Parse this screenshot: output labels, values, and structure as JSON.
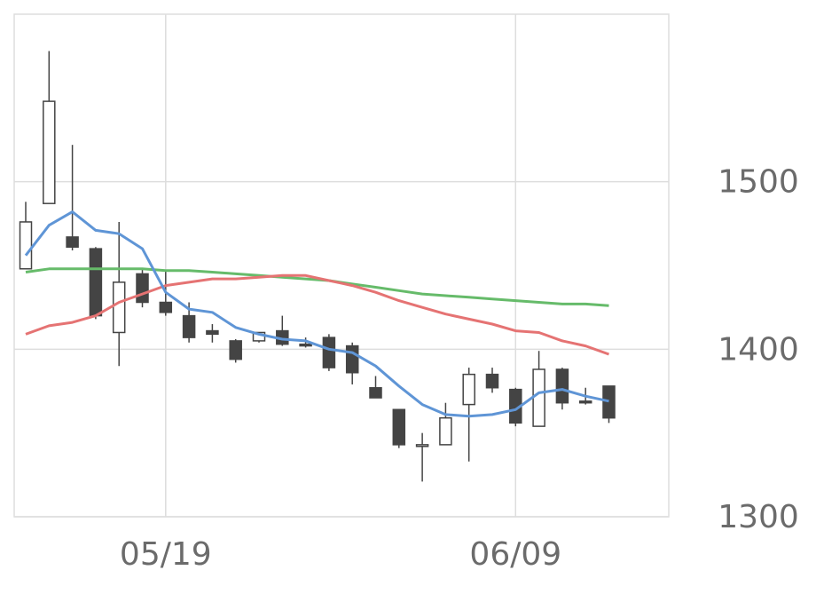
{
  "chart_data": {
    "type": "candlestick",
    "title": "",
    "xlabel": "",
    "ylabel": "",
    "ylim": [
      1300,
      1600
    ],
    "y_ticks": [
      1300,
      1400,
      1500
    ],
    "x_tick_labels": [
      "05/19",
      "06/09"
    ],
    "grid": true,
    "y_axis_side": "right",
    "colors": {
      "up_fill": "#ffffff",
      "down_fill": "#444444",
      "candle_edge": "#444444",
      "grid": "#dddddd",
      "frame": "#dddddd",
      "ma_short": "#5f95d6",
      "ma_mid": "#e57373",
      "ma_long": "#66bb6a"
    },
    "candles": [
      {
        "o": 1448,
        "h": 1488,
        "l": 1448,
        "c": 1476
      },
      {
        "o": 1487,
        "h": 1578,
        "l": 1487,
        "c": 1548
      },
      {
        "o": 1467,
        "h": 1522,
        "l": 1459,
        "c": 1461
      },
      {
        "o": 1460,
        "h": 1461,
        "l": 1418,
        "c": 1420
      },
      {
        "o": 1410,
        "h": 1476,
        "l": 1390,
        "c": 1440
      },
      {
        "o": 1445,
        "h": 1448,
        "l": 1425,
        "c": 1428
      },
      {
        "o": 1428,
        "h": 1447,
        "l": 1420,
        "c": 1422
      },
      {
        "o": 1420,
        "h": 1428,
        "l": 1404,
        "c": 1407
      },
      {
        "o": 1411,
        "h": 1415,
        "l": 1404,
        "c": 1409
      },
      {
        "o": 1405,
        "h": 1406,
        "l": 1392,
        "c": 1394
      },
      {
        "o": 1405,
        "h": 1410,
        "l": 1404,
        "c": 1410
      },
      {
        "o": 1411,
        "h": 1420,
        "l": 1402,
        "c": 1403
      },
      {
        "o": 1403,
        "h": 1407,
        "l": 1401,
        "c": 1402
      },
      {
        "o": 1407,
        "h": 1409,
        "l": 1387,
        "c": 1389
      },
      {
        "o": 1402,
        "h": 1404,
        "l": 1379,
        "c": 1386
      },
      {
        "o": 1377,
        "h": 1384,
        "l": 1371,
        "c": 1371
      },
      {
        "o": 1364,
        "h": 1364,
        "l": 1341,
        "c": 1343
      },
      {
        "o": 1342,
        "h": 1350,
        "l": 1321,
        "c": 1343
      },
      {
        "o": 1343,
        "h": 1368,
        "l": 1343,
        "c": 1359
      },
      {
        "o": 1367,
        "h": 1389,
        "l": 1333,
        "c": 1385
      },
      {
        "o": 1385,
        "h": 1389,
        "l": 1374,
        "c": 1377
      },
      {
        "o": 1376,
        "h": 1377,
        "l": 1354,
        "c": 1356
      },
      {
        "o": 1354,
        "h": 1399,
        "l": 1354,
        "c": 1388
      },
      {
        "o": 1388,
        "h": 1389,
        "l": 1364,
        "c": 1368
      },
      {
        "o": 1369,
        "h": 1377,
        "l": 1367,
        "c": 1368
      },
      {
        "o": 1378,
        "h": 1378,
        "l": 1356,
        "c": 1359
      }
    ],
    "series": [
      {
        "values": [
          1456,
          1474,
          1482,
          1471,
          1469,
          1460,
          1434,
          1424,
          1422,
          1413,
          1409,
          1406,
          1405,
          1400,
          1398,
          1390,
          1378,
          1367,
          1361,
          1360,
          1361,
          1364,
          1374,
          1376,
          1372,
          1369
        ]
      },
      {
        "values": [
          1409,
          1414,
          1416,
          1420,
          1428,
          1433,
          1438,
          1440,
          1442,
          1442,
          1443,
          1444,
          1444,
          1441,
          1438,
          1434,
          1429,
          1425,
          1421,
          1418,
          1415,
          1411,
          1410,
          1405,
          1402,
          1397
        ]
      },
      {
        "values": [
          1446,
          1448,
          1448,
          1448,
          1448,
          1448,
          1447,
          1447,
          1446,
          1445,
          1444,
          1443,
          1442,
          1441,
          1439,
          1437,
          1435,
          1433,
          1432,
          1431,
          1430,
          1429,
          1428,
          1427,
          1427,
          1426
        ]
      }
    ]
  }
}
